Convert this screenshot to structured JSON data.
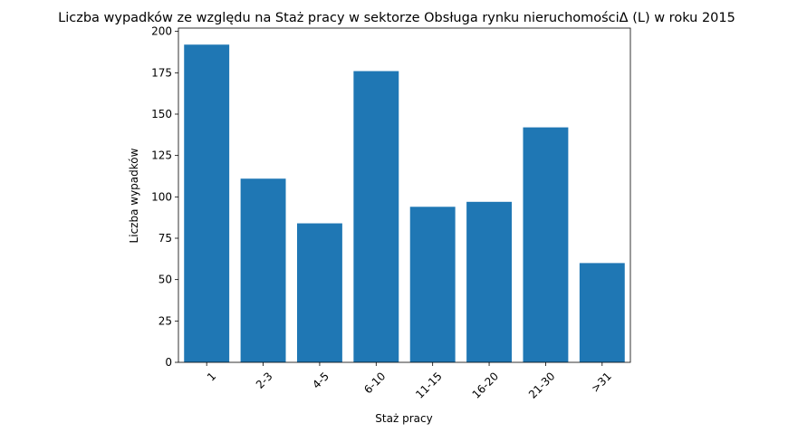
{
  "chart_data": {
    "type": "bar",
    "title": "Liczba wypadków ze względu na Staż pracy w sektorze  Obsługa rynku nieruchomościΔ  (L) w roku 2015",
    "xlabel": "Staż pracy",
    "ylabel": "Liczba wypadków",
    "categories": [
      "1",
      "2-3",
      "4-5",
      "6-10",
      "11-15",
      "16-20",
      "21-30",
      ">31"
    ],
    "values": [
      192,
      111,
      84,
      176,
      94,
      97,
      142,
      60
    ],
    "ylim": [
      0,
      202
    ],
    "yticks": [
      "0",
      "25",
      "50",
      "75",
      "100",
      "125",
      "150",
      "175",
      "200"
    ],
    "bar_color": "#1f77b4",
    "grid": false,
    "legend": "none"
  }
}
